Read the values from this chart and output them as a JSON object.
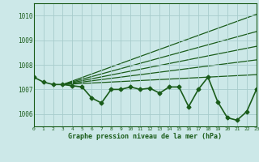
{
  "background_color": "#cce8e8",
  "grid_color": "#a8cccc",
  "line_color": "#1a5c1a",
  "title": "Graphe pression niveau de la mer (hPa)",
  "xlim": [
    0,
    23
  ],
  "ylim": [
    1005.5,
    1010.5
  ],
  "yticks": [
    1006,
    1007,
    1008,
    1009,
    1010
  ],
  "xticks": [
    0,
    1,
    2,
    3,
    4,
    5,
    6,
    7,
    8,
    9,
    10,
    11,
    12,
    13,
    14,
    15,
    16,
    17,
    18,
    19,
    20,
    21,
    22,
    23
  ],
  "main_line": {
    "x": [
      0,
      1,
      2,
      3,
      4,
      5,
      6,
      7,
      8,
      9,
      10,
      11,
      12,
      13,
      14,
      15,
      16,
      17,
      18,
      19,
      20,
      21,
      22,
      23
    ],
    "y": [
      1007.5,
      1007.3,
      1007.2,
      1007.2,
      1007.15,
      1007.1,
      1006.65,
      1006.45,
      1007.0,
      1007.0,
      1007.1,
      1007.0,
      1007.05,
      1006.85,
      1007.1,
      1007.1,
      1006.3,
      1007.0,
      1007.5,
      1006.5,
      1005.85,
      1005.75,
      1006.1,
      1007.0
    ],
    "marker": "D",
    "markersize": 2.5,
    "linewidth": 1.2
  },
  "fan_lines": [
    {
      "x0": 3,
      "y0": 1007.2,
      "x1": 23,
      "y1": 1010.05
    },
    {
      "x0": 3,
      "y0": 1007.2,
      "x1": 23,
      "y1": 1009.35
    },
    {
      "x0": 3,
      "y0": 1007.2,
      "x1": 23,
      "y1": 1008.75
    },
    {
      "x0": 3,
      "y0": 1007.2,
      "x1": 23,
      "y1": 1008.2
    },
    {
      "x0": 3,
      "y0": 1007.2,
      "x1": 23,
      "y1": 1007.6
    }
  ]
}
